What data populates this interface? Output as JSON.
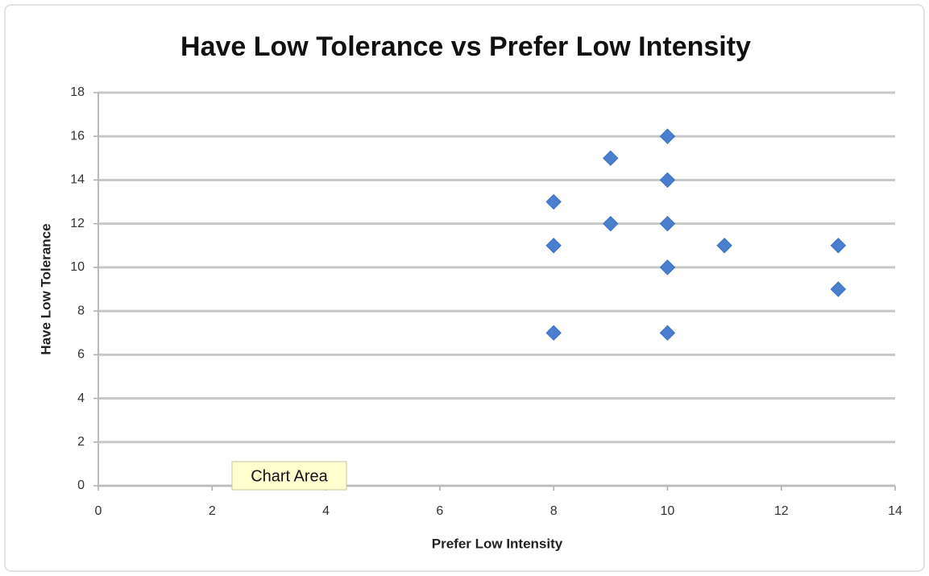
{
  "chart_data": {
    "type": "scatter",
    "title": "Have Low Tolerance vs Prefer Low Intensity",
    "x_label": "Prefer Low Intensity",
    "y_label": "Have Low Tolerance",
    "x": [
      8,
      8,
      8,
      9,
      9,
      10,
      10,
      10,
      10,
      10,
      11,
      13,
      13
    ],
    "values": [
      13,
      11,
      7,
      15,
      12,
      16,
      14,
      12,
      10,
      7,
      11,
      11,
      9
    ],
    "color": "#4a7fcf",
    "xlim": [
      0,
      14
    ],
    "xticks": [
      0,
      2,
      4,
      6,
      8,
      10,
      12,
      14
    ],
    "ylim": [
      0,
      18
    ],
    "yticks": [
      0,
      2,
      4,
      6,
      8,
      10,
      12,
      14,
      16,
      18
    ],
    "grid": true,
    "tooltip": "Chart Area"
  }
}
